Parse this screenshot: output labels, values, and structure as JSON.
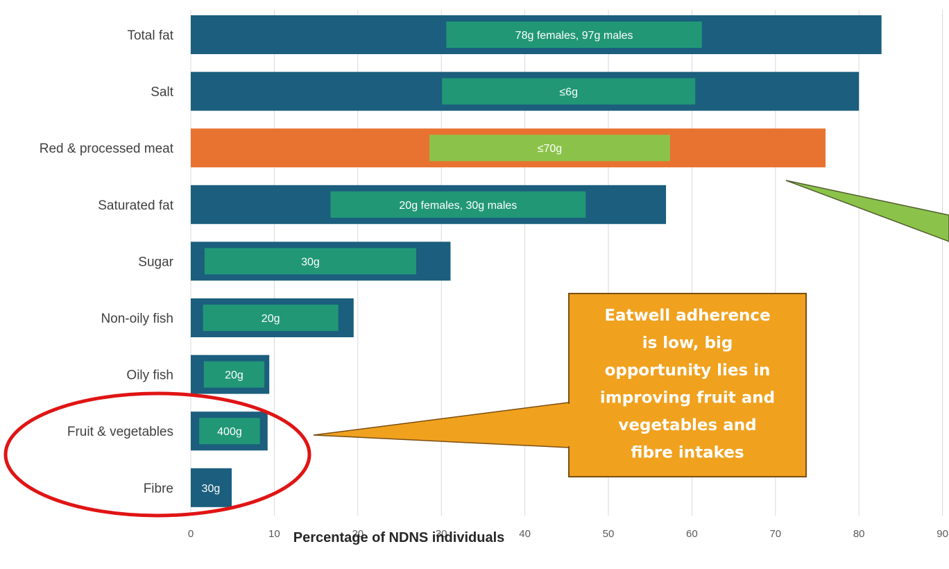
{
  "colors": {
    "bar_default": "#1b5e7d",
    "bar_highlight": "#e87331",
    "inner_default": "#219776",
    "inner_highlight": "#8bc34a",
    "gridline": "#d9d9d9",
    "callout_fill": "#f0a11e",
    "callout_border": "#7a4e12",
    "arrow_fill": "#8bc34a",
    "ellipse_stroke": "#e01414"
  },
  "chart_data": {
    "type": "bar",
    "orientation": "horizontal",
    "xlabel": "Percentage of NDNS individuals",
    "xlim": [
      0,
      90
    ],
    "xticks": [
      0,
      10,
      20,
      30,
      40,
      50,
      60,
      70,
      80,
      90
    ],
    "grid": true,
    "categories": [
      "Total fat",
      "Salt",
      "Red & processed meat",
      "Saturated fat",
      "Sugar",
      "Non-oily fish",
      "Oily fish",
      "Fruit & vegetables",
      "Fibre"
    ],
    "values": [
      82.7,
      80.0,
      76.0,
      56.9,
      31.1,
      19.5,
      9.4,
      9.2,
      4.9
    ],
    "highlight_index": 2,
    "recommendation_labels": [
      "78g females, 97g males",
      "≤6g",
      "≤70g",
      "20g females, 30g males",
      "30g",
      "20g",
      "20g",
      "400g",
      "30g"
    ]
  },
  "annotations": {
    "callout_lines": [
      "Eatwell adherence",
      "is low, big",
      "opportunity lies in",
      "improving fruit and",
      "vegetables and",
      "fibre intakes"
    ]
  }
}
